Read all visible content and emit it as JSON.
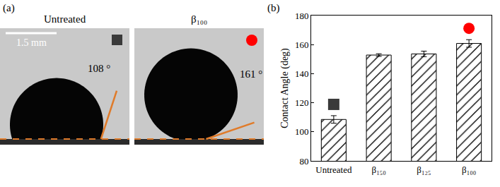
{
  "panel_a": {
    "panel_label": "(a)",
    "scale_bar": "1.5 mm",
    "images": [
      {
        "title": "Untreated",
        "contact_angle": 108,
        "angle_label": "108 °",
        "marker": "square",
        "color": "#3a3a3a"
      },
      {
        "title": "β₁₀₀",
        "contact_angle": 161,
        "angle_label": "161 °",
        "marker": "circle",
        "color": "#ff0000"
      }
    ]
  },
  "chart_data": {
    "type": "bar",
    "panel_label": "(b)",
    "categories": [
      "Untreated",
      "β₁₅₀",
      "β₁₂₅",
      "β₁₀₀"
    ],
    "values": [
      108.5,
      152.8,
      153.6,
      160.8
    ],
    "errors": [
      2.6,
      0.9,
      1.9,
      2.6
    ],
    "color": "#000000",
    "ylabel": "Contact Angle (deg)",
    "ylim": [
      80,
      180
    ],
    "yticks": [
      80,
      100,
      120,
      140,
      160,
      180
    ],
    "highlights": [
      {
        "category": "Untreated",
        "marker": "square",
        "color": "#3a3a3a"
      },
      {
        "category": "β₁₀₀",
        "marker": "circle",
        "color": "#ff0000"
      }
    ]
  }
}
